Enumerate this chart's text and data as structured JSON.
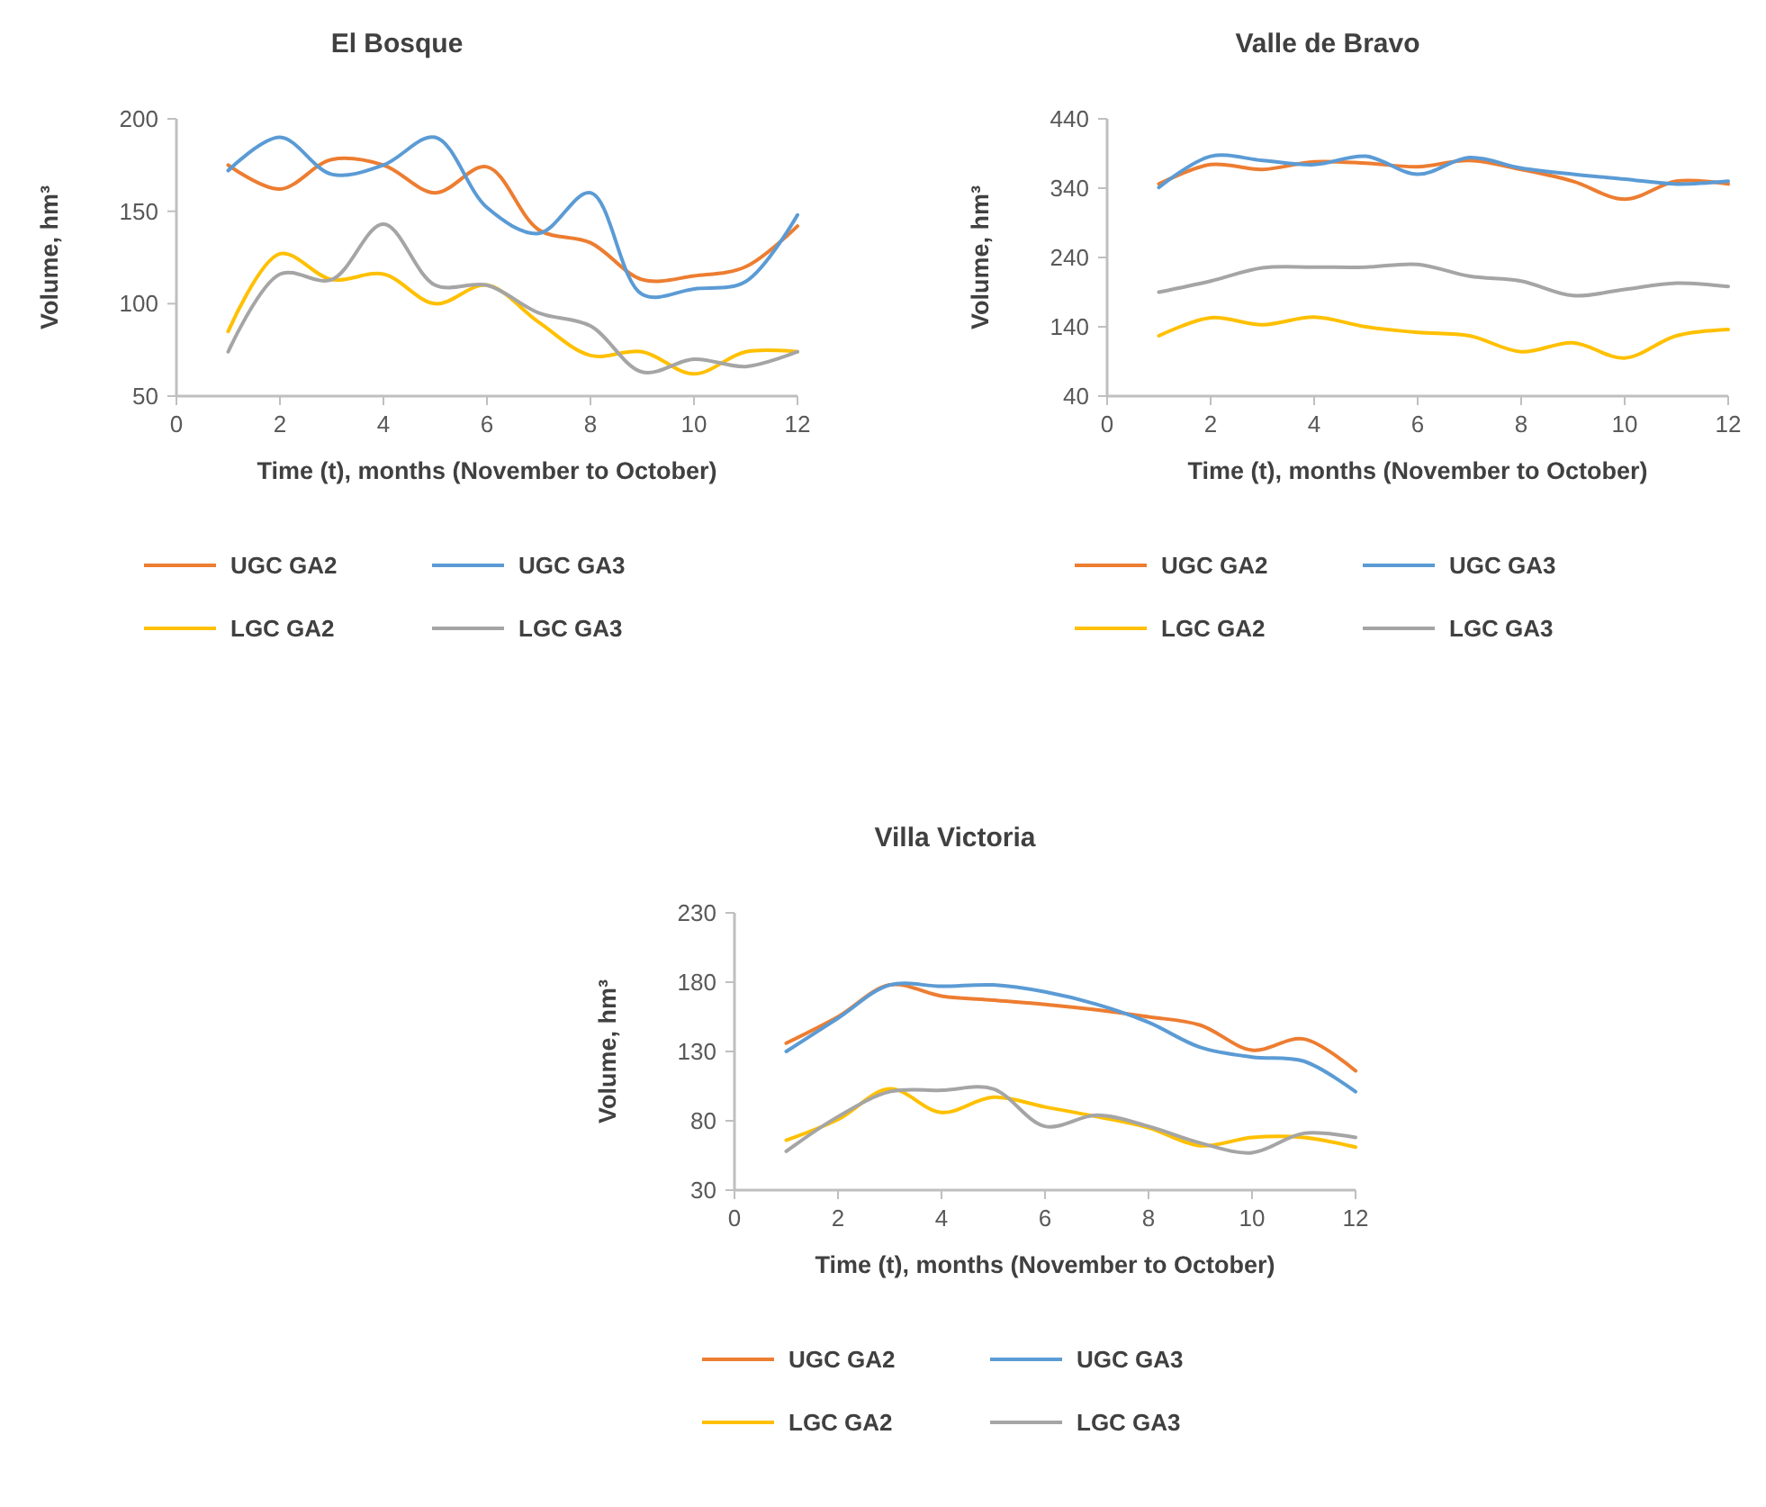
{
  "chart_data": [
    {
      "type": "line",
      "title": "El Bosque",
      "xlabel": "Time (t), months (November to October)",
      "ylabel": "Volume, hm³",
      "x": [
        1,
        2,
        3,
        4,
        5,
        6,
        7,
        8,
        9,
        10,
        11,
        12
      ],
      "xlim": [
        0,
        12
      ],
      "xticks": [
        0,
        2,
        4,
        6,
        8,
        10,
        12
      ],
      "ylim": [
        50,
        200
      ],
      "yticks": [
        50,
        100,
        150,
        200
      ],
      "grid": false,
      "legend": "bottom",
      "marker": "none",
      "series": [
        {
          "name": "UGC GA2",
          "color": "#ed7d31",
          "values": [
            175,
            162,
            178,
            175,
            160,
            174,
            140,
            133,
            113,
            115,
            120,
            142
          ]
        },
        {
          "name": "UGC GA3",
          "color": "#5b9bd5",
          "values": [
            172,
            190,
            170,
            175,
            190,
            152,
            138,
            160,
            105,
            108,
            112,
            148
          ]
        },
        {
          "name": "LGC GA2",
          "color": "#ffc000",
          "values": [
            85,
            127,
            113,
            116,
            100,
            110,
            90,
            72,
            74,
            62,
            74,
            74
          ]
        },
        {
          "name": "LGC GA3",
          "color": "#a5a5a5",
          "values": [
            74,
            116,
            113,
            143,
            110,
            110,
            95,
            88,
            63,
            70,
            66,
            74
          ]
        }
      ]
    },
    {
      "type": "line",
      "title": "Valle de Bravo",
      "xlabel": "Time (t), months (November to October)",
      "ylabel": "Volume, hm³",
      "x": [
        1,
        2,
        3,
        4,
        5,
        6,
        7,
        8,
        9,
        10,
        11,
        12
      ],
      "xlim": [
        0,
        12
      ],
      "xticks": [
        0,
        2,
        4,
        6,
        8,
        10,
        12
      ],
      "ylim": [
        40,
        440
      ],
      "yticks": [
        40,
        140,
        240,
        340,
        440
      ],
      "grid": false,
      "legend": "bottom",
      "marker": "none",
      "series": [
        {
          "name": "UGC GA2",
          "color": "#ed7d31",
          "values": [
            346,
            374,
            367,
            378,
            376,
            371,
            380,
            367,
            350,
            324,
            350,
            346
          ]
        },
        {
          "name": "UGC GA3",
          "color": "#5b9bd5",
          "values": [
            341,
            386,
            380,
            374,
            386,
            360,
            384,
            369,
            360,
            353,
            346,
            350
          ]
        },
        {
          "name": "LGC GA2",
          "color": "#ffc000",
          "values": [
            127,
            153,
            143,
            154,
            140,
            132,
            127,
            104,
            117,
            95,
            127,
            136
          ]
        },
        {
          "name": "LGC GA3",
          "color": "#a5a5a5",
          "values": [
            190,
            206,
            225,
            226,
            226,
            230,
            213,
            206,
            185,
            194,
            203,
            198
          ]
        }
      ]
    },
    {
      "type": "line",
      "title": "Villa Victoria",
      "xlabel": "Time (t), months (November to October)",
      "ylabel": "Volume, hm³",
      "x": [
        1,
        2,
        3,
        4,
        5,
        6,
        7,
        8,
        9,
        10,
        11,
        12
      ],
      "xlim": [
        0,
        12
      ],
      "xticks": [
        0,
        2,
        4,
        6,
        8,
        10,
        12
      ],
      "ylim": [
        30,
        230
      ],
      "yticks": [
        30,
        80,
        130,
        180,
        230
      ],
      "grid": false,
      "legend": "bottom",
      "marker": "none",
      "series": [
        {
          "name": "UGC GA2",
          "color": "#ed7d31",
          "values": [
            136,
            155,
            178,
            170,
            167,
            164,
            160,
            155,
            149,
            131,
            139,
            116
          ]
        },
        {
          "name": "UGC GA3",
          "color": "#5b9bd5",
          "values": [
            130,
            154,
            178,
            177,
            178,
            173,
            164,
            151,
            133,
            126,
            123,
            101
          ]
        },
        {
          "name": "LGC GA2",
          "color": "#ffc000",
          "values": [
            66,
            81,
            103,
            86,
            97,
            90,
            83,
            75,
            62,
            68,
            68,
            61
          ]
        },
        {
          "name": "LGC GA3",
          "color": "#a5a5a5",
          "values": [
            58,
            83,
            101,
            102,
            103,
            76,
            84,
            76,
            64,
            57,
            71,
            68
          ]
        }
      ]
    }
  ]
}
